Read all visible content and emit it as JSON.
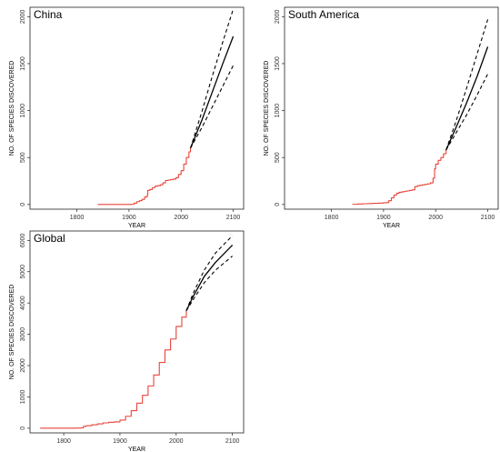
{
  "chart_data": [
    {
      "type": "line",
      "title": "China",
      "xlabel": "YEAR",
      "ylabel": "NO. OF SPECIES DISCOVERED",
      "xlim": [
        1710,
        2120
      ],
      "ylim": [
        -50,
        2100
      ],
      "x_ticks": [
        1800,
        1900,
        2000,
        2100
      ],
      "y_ticks": [
        0,
        500,
        1000,
        1500,
        2000
      ],
      "series": [
        {
          "role": "observed",
          "color": "#e8443a",
          "x": [
            1840,
            1850,
            1860,
            1870,
            1880,
            1890,
            1900,
            1905,
            1910,
            1915,
            1920,
            1925,
            1930,
            1935,
            1936,
            1940,
            1945,
            1950,
            1955,
            1960,
            1965,
            1970,
            1975,
            1980,
            1985,
            1990,
            1995,
            2000,
            2005,
            2010,
            2015,
            2018
          ],
          "y": [
            0,
            0,
            0,
            0,
            0,
            0,
            0,
            2,
            15,
            30,
            40,
            55,
            80,
            100,
            150,
            160,
            180,
            195,
            200,
            210,
            230,
            255,
            260,
            265,
            270,
            285,
            320,
            360,
            430,
            500,
            560,
            600
          ]
        },
        {
          "role": "projection",
          "color": "#000000",
          "x": [
            2018,
            2040,
            2060,
            2080,
            2100
          ],
          "y": [
            600,
            900,
            1200,
            1500,
            1790
          ]
        },
        {
          "role": "upper-bound",
          "color": "#000000",
          "x": [
            2018,
            2040,
            2060,
            2080,
            2100
          ],
          "y": [
            600,
            990,
            1370,
            1730,
            2080
          ]
        },
        {
          "role": "lower-bound",
          "color": "#000000",
          "x": [
            2018,
            2040,
            2060,
            2080,
            2100
          ],
          "y": [
            600,
            820,
            1040,
            1260,
            1480
          ]
        }
      ]
    },
    {
      "type": "line",
      "title": "South America",
      "xlabel": "YEAR",
      "ylabel": "NO. OF SPECIES DISCOVERED",
      "xlim": [
        1710,
        2120
      ],
      "ylim": [
        -50,
        2100
      ],
      "x_ticks": [
        1800,
        1900,
        2000,
        2100
      ],
      "y_ticks": [
        0,
        500,
        1000,
        1500,
        2000
      ],
      "series": [
        {
          "role": "observed",
          "color": "#e8443a",
          "x": [
            1840,
            1850,
            1860,
            1870,
            1880,
            1890,
            1900,
            1905,
            1910,
            1915,
            1920,
            1925,
            1930,
            1935,
            1940,
            1945,
            1950,
            1955,
            1960,
            1965,
            1970,
            1975,
            1980,
            1985,
            1990,
            1995,
            1998,
            2000,
            2005,
            2010,
            2015,
            2020
          ],
          "y": [
            2,
            5,
            8,
            10,
            12,
            15,
            18,
            20,
            40,
            70,
            100,
            120,
            130,
            135,
            140,
            145,
            150,
            155,
            190,
            200,
            205,
            210,
            215,
            220,
            230,
            280,
            380,
            430,
            470,
            500,
            540,
            580
          ]
        },
        {
          "role": "projection",
          "color": "#000000",
          "x": [
            2020,
            2040,
            2060,
            2080,
            2100
          ],
          "y": [
            580,
            830,
            1090,
            1370,
            1680
          ]
        },
        {
          "role": "upper-bound",
          "color": "#000000",
          "x": [
            2020,
            2040,
            2060,
            2080,
            2100
          ],
          "y": [
            580,
            900,
            1250,
            1610,
            1970
          ]
        },
        {
          "role": "lower-bound",
          "color": "#000000",
          "x": [
            2020,
            2040,
            2060,
            2080,
            2100
          ],
          "y": [
            580,
            770,
            960,
            1170,
            1390
          ]
        }
      ]
    },
    {
      "type": "line",
      "title": "Global",
      "xlabel": "YEAR",
      "ylabel": "NO. OF SPECIES DISCOVERED",
      "xlim": [
        1740,
        2120
      ],
      "ylim": [
        -150,
        6300
      ],
      "x_ticks": [
        1800,
        1900,
        2000,
        2100
      ],
      "y_ticks": [
        0,
        1000,
        2000,
        3000,
        4000,
        5000,
        6000
      ],
      "series": [
        {
          "role": "observed",
          "color": "#e8443a",
          "x": [
            1758,
            1780,
            1800,
            1820,
            1830,
            1835,
            1840,
            1850,
            1860,
            1870,
            1880,
            1890,
            1900,
            1910,
            1920,
            1930,
            1940,
            1950,
            1960,
            1970,
            1980,
            1990,
            2000,
            2010,
            2018
          ],
          "y": [
            0,
            0,
            0,
            5,
            10,
            60,
            80,
            110,
            140,
            170,
            190,
            200,
            260,
            380,
            560,
            800,
            1050,
            1350,
            1700,
            2100,
            2500,
            2850,
            3250,
            3550,
            3750
          ]
        },
        {
          "role": "projection",
          "color": "#000000",
          "x": [
            2018,
            2030,
            2050,
            2070,
            2100
          ],
          "y": [
            3750,
            4200,
            4850,
            5300,
            5850
          ]
        },
        {
          "role": "upper-bound",
          "color": "#000000",
          "x": [
            2018,
            2030,
            2050,
            2070,
            2100
          ],
          "y": [
            3750,
            4300,
            5050,
            5600,
            6150
          ]
        },
        {
          "role": "lower-bound",
          "color": "#000000",
          "x": [
            2018,
            2030,
            2050,
            2070,
            2100
          ],
          "y": [
            3750,
            4100,
            4650,
            5050,
            5500
          ]
        }
      ]
    }
  ]
}
